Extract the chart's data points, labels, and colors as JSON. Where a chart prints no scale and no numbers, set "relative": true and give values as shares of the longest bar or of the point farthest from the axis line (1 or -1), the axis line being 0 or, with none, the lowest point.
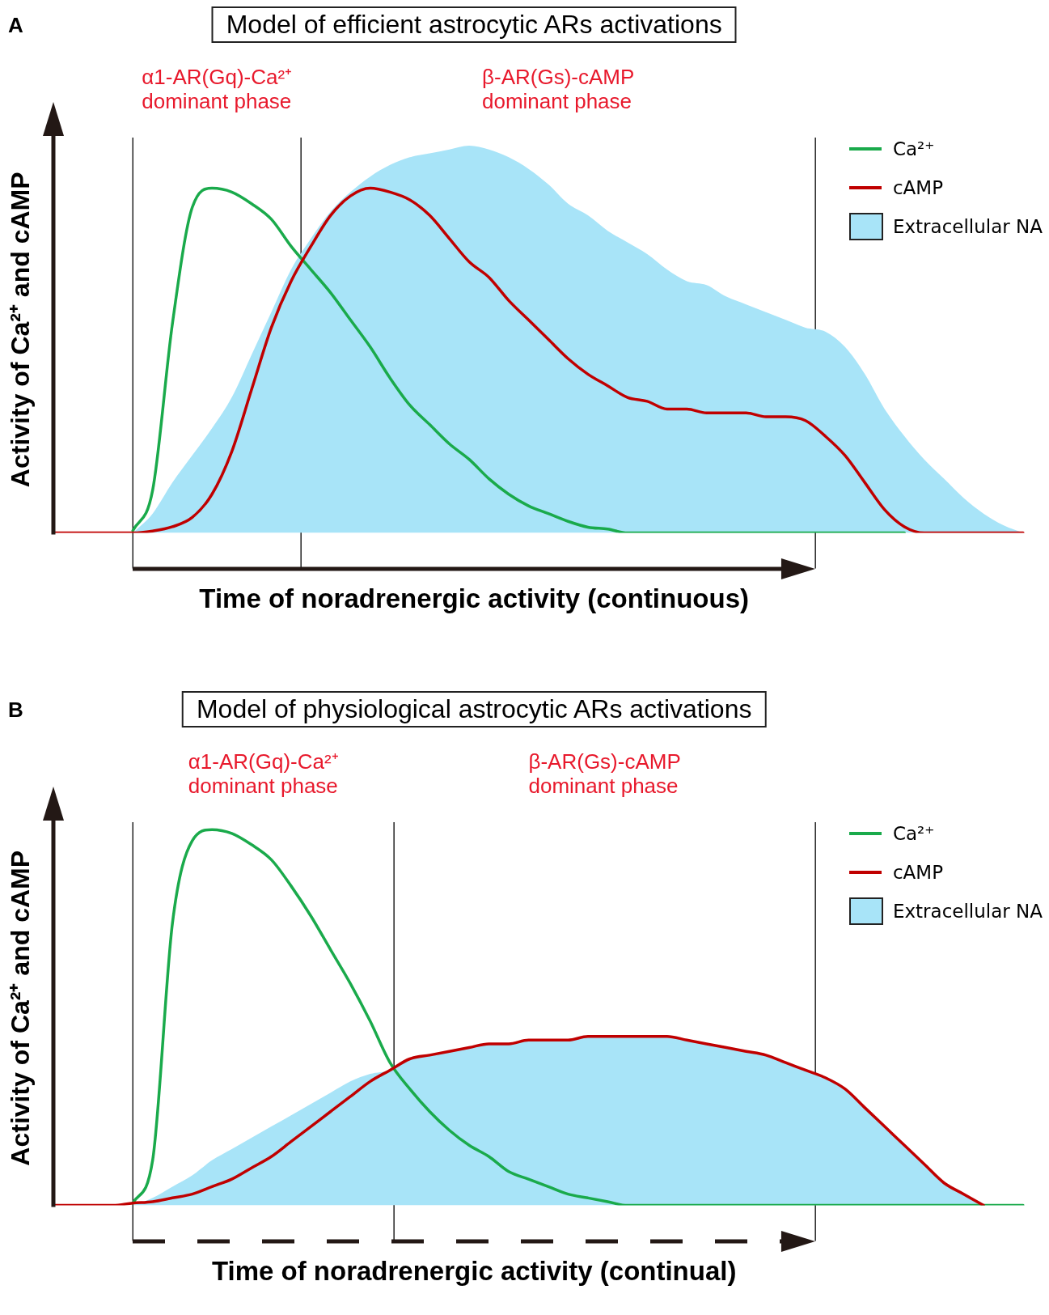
{
  "chart_data": [
    {
      "type": "line",
      "title": "Model of efficient astrocytic ARs activations",
      "xlabel": "Time of noradrenergic activity (continuous)",
      "ylabel": "Activity of Ca²⁺ and cAMP",
      "relative": true,
      "marker": "none",
      "legend": "top right",
      "annotations": [
        "A",
        "α1-AR(Gq)-Ca²⁺\ndominant phase",
        "β-AR(Gs)-cAMP\ndominant phase"
      ],
      "categories": [
        null,
        null,
        null,
        null,
        null,
        null,
        null,
        null,
        null,
        null,
        null,
        null,
        null,
        null,
        null,
        null,
        null,
        null,
        null,
        null,
        null,
        null,
        null,
        null,
        null,
        null,
        null,
        null,
        null,
        null,
        null,
        null,
        null,
        null,
        null,
        null,
        null,
        null,
        null,
        null,
        null,
        null,
        null,
        null,
        null,
        null,
        null,
        null,
        null,
        null
      ],
      "series": [
        {
          "name": "Extracellular NA",
          "type": "area",
          "color": "#a8e4f8",
          "values": [
            null,
            null,
            null,
            null,
            0,
            0.05,
            0.13,
            0.2,
            0.27,
            0.35,
            0.46,
            0.57,
            0.68,
            0.76,
            0.83,
            0.88,
            0.92,
            0.95,
            0.97,
            0.98,
            0.99,
            1,
            0.99,
            0.97,
            0.94,
            0.9,
            0.85,
            0.82,
            0.78,
            0.75,
            0.72,
            0.68,
            0.65,
            0.64,
            0.61,
            0.59,
            0.57,
            0.55,
            0.53,
            0.52,
            0.48,
            0.41,
            0.32,
            0.25,
            0.19,
            0.14,
            0.09,
            0.05,
            0.02,
            0
          ]
        },
        {
          "name": "Ca²⁺",
          "type": "line",
          "color": "#1aaa4b",
          "values": [
            null,
            null,
            null,
            null,
            0.006,
            0.11,
            0.54,
            0.84,
            0.89,
            0.88,
            0.85,
            0.81,
            0.74,
            0.68,
            0.62,
            0.55,
            0.48,
            0.4,
            0.33,
            0.28,
            0.23,
            0.19,
            0.14,
            0.1,
            0.07,
            0.05,
            0.03,
            0.015,
            0.01,
            0,
            0,
            0,
            0,
            0,
            0,
            0,
            0,
            0,
            0,
            0,
            0,
            0,
            0,
            0,
            null,
            null,
            null,
            null,
            null,
            null
          ]
        },
        {
          "name": "cAMP",
          "type": "line",
          "color": "#c00000",
          "values": [
            0,
            0,
            0,
            0,
            0,
            0.005,
            0.016,
            0.04,
            0.1,
            0.21,
            0.37,
            0.53,
            0.65,
            0.74,
            0.82,
            0.87,
            0.89,
            0.88,
            0.86,
            0.82,
            0.76,
            0.7,
            0.66,
            0.6,
            0.55,
            0.5,
            0.45,
            0.41,
            0.38,
            0.35,
            0.34,
            0.32,
            0.32,
            0.31,
            0.31,
            0.31,
            0.3,
            0.3,
            0.29,
            0.25,
            0.2,
            0.13,
            0.06,
            0.016,
            0,
            0,
            0,
            0,
            0,
            0
          ]
        }
      ]
    },
    {
      "type": "line",
      "title": "Model of physiological astrocytic ARs activations",
      "xlabel": "Time of noradrenergic activity (continual)",
      "ylabel": "Activity of Ca²⁺ and cAMP",
      "relative": true,
      "marker": "none",
      "legend": "top right",
      "annotations": [
        "B",
        "α1-AR(Gq)-Ca²⁺\ndominant phase",
        "β-AR(Gs)-cAMP\ndominant phase"
      ],
      "categories": [
        null,
        null,
        null,
        null,
        null,
        null,
        null,
        null,
        null,
        null,
        null,
        null,
        null,
        null,
        null,
        null,
        null,
        null,
        null,
        null,
        null,
        null,
        null,
        null,
        null,
        null,
        null,
        null,
        null,
        null,
        null,
        null,
        null,
        null,
        null,
        null,
        null,
        null,
        null,
        null,
        null,
        null,
        null,
        null,
        null,
        null,
        null,
        null,
        null,
        null
      ],
      "series": [
        {
          "name": "Extracellular NA",
          "type": "area",
          "color": "#a8e4f8",
          "values": [
            null,
            null,
            null,
            null,
            0,
            0.02,
            0.05,
            0.08,
            0.12,
            0.15,
            0.18,
            0.21,
            0.24,
            0.27,
            0.3,
            0.33,
            0.35,
            0.36,
            0.39,
            0.4,
            0.41,
            0.42,
            0.43,
            0.43,
            0.44,
            0.44,
            0.44,
            0.45,
            0.45,
            0.45,
            0.45,
            0.45,
            0.44,
            0.43,
            0.42,
            0.41,
            0.4,
            0.38,
            0.36,
            0.34,
            0.31,
            0.26,
            0.21,
            0.16,
            0.11,
            0.06,
            0.03,
            0,
            0,
            0
          ]
        },
        {
          "name": "Ca²⁺",
          "type": "line",
          "color": "#1aaa4b",
          "values": [
            null,
            null,
            null,
            null,
            0.006,
            0.12,
            0.75,
            0.97,
            1,
            0.99,
            0.96,
            0.92,
            0.85,
            0.77,
            0.68,
            0.59,
            0.49,
            0.38,
            0.31,
            0.25,
            0.2,
            0.16,
            0.13,
            0.09,
            0.07,
            0.05,
            0.03,
            0.02,
            0.01,
            0,
            0,
            0,
            0,
            0,
            0,
            0,
            0,
            0,
            0,
            0,
            0,
            0,
            0,
            0,
            0,
            0,
            0,
            0,
            0,
            0
          ]
        },
        {
          "name": "cAMP",
          "type": "line",
          "color": "#c00000",
          "values": [
            0,
            0,
            0,
            0,
            0.006,
            0.01,
            0.02,
            0.03,
            0.05,
            0.07,
            0.1,
            0.13,
            0.17,
            0.21,
            0.25,
            0.29,
            0.33,
            0.36,
            0.39,
            0.4,
            0.41,
            0.42,
            0.43,
            0.43,
            0.44,
            0.44,
            0.44,
            0.45,
            0.45,
            0.45,
            0.45,
            0.45,
            0.44,
            0.43,
            0.42,
            0.41,
            0.4,
            0.38,
            0.36,
            0.34,
            0.31,
            0.26,
            0.21,
            0.16,
            0.11,
            0.06,
            0.03,
            0,
            null,
            null
          ]
        }
      ]
    }
  ]
}
